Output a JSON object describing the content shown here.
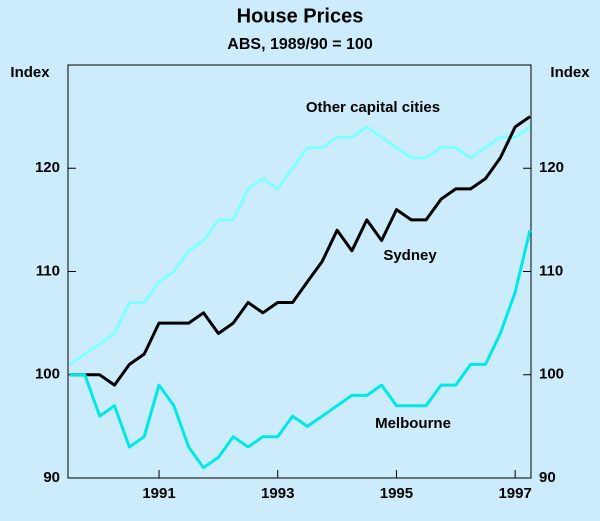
{
  "chart_data": {
    "type": "line",
    "title": "House Prices",
    "subtitle": "ABS, 1989/90 = 100",
    "y_label": "Index",
    "y2_label": "Index",
    "categories": [
      null,
      null,
      null,
      null,
      null,
      null,
      "1991",
      null,
      null,
      null,
      null,
      null,
      null,
      null,
      "1993",
      null,
      null,
      null,
      null,
      null,
      null,
      null,
      "1995",
      null,
      null,
      null,
      null,
      null,
      null,
      null,
      "1997",
      null
    ],
    "series": [
      {
        "name": "Other capital cities",
        "color": "#80ffff",
        "values": [
          101,
          102,
          103,
          104,
          107,
          107,
          109,
          110,
          112,
          113,
          115,
          115,
          118,
          119,
          118,
          120,
          122,
          122,
          123,
          123,
          124,
          123,
          122,
          121,
          121,
          122,
          122,
          121,
          122,
          123,
          123,
          124
        ]
      },
      {
        "name": "Sydney",
        "color": "#000000",
        "values": [
          100,
          100,
          100,
          99,
          101,
          102,
          105,
          105,
          105,
          106,
          104,
          105,
          107,
          106,
          107,
          107,
          109,
          111,
          114,
          112,
          115,
          113,
          116,
          115,
          115,
          117,
          118,
          118,
          119,
          121,
          124,
          125
        ]
      },
      {
        "name": "Melbourne",
        "color": "#00e8e8",
        "values": [
          100,
          100,
          96,
          97,
          93,
          94,
          99,
          97,
          93,
          91,
          92,
          94,
          93,
          94,
          94,
          96,
          95,
          96,
          97,
          98,
          98,
          99,
          97,
          97,
          97,
          99,
          99,
          101,
          101,
          104,
          108,
          114
        ]
      }
    ],
    "ylim": [
      90,
      130
    ],
    "yticks": [
      90,
      100,
      110,
      120
    ],
    "y2lim": [
      90,
      130
    ],
    "y2ticks": [
      90,
      100,
      110,
      120
    ]
  }
}
